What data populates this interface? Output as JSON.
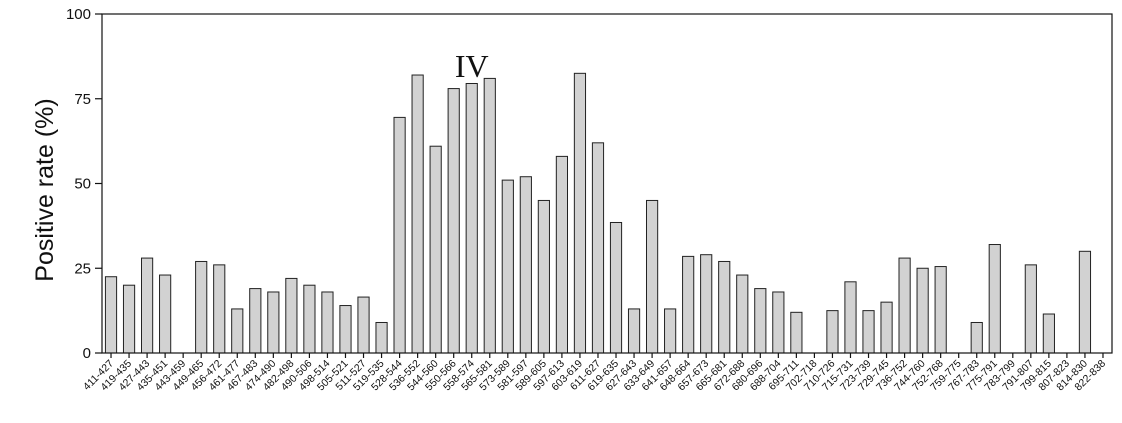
{
  "chart_data": {
    "type": "bar",
    "ylabel": "Positive rate (%)",
    "ylim": [
      0,
      100
    ],
    "yticks": [
      0,
      25,
      50,
      75,
      100
    ],
    "annotations": [
      {
        "text": "IV",
        "near_category": "558-574"
      }
    ],
    "categories": [
      "411-427",
      "419-435",
      "427-443",
      "435-451",
      "443-459",
      "449-465",
      "456-472",
      "461-477",
      "467-483",
      "474-490",
      "482-498",
      "490-506",
      "498-514",
      "505-521",
      "511-527",
      "519-535",
      "528-544",
      "536-552",
      "544-560",
      "550-566",
      "558-574",
      "565-581",
      "573-589",
      "581-597",
      "589-605",
      "597-613",
      "603-619",
      "611-627",
      "619-635",
      "627-643",
      "633-649",
      "641-657",
      "648-664",
      "657-673",
      "665-681",
      "672-688",
      "680-696",
      "688-704",
      "695-711",
      "702-718",
      "710-726",
      "715-731",
      "723-739",
      "729-745",
      "736-752",
      "744-760",
      "752-768",
      "759-775",
      "767-783",
      "775-791",
      "783-799",
      "791-807",
      "799-815",
      "807-823",
      "814-830",
      "822-838"
    ],
    "values": [
      22.5,
      20,
      28,
      23,
      0,
      27,
      26,
      13,
      19,
      18,
      22,
      20,
      18,
      14,
      16.5,
      9,
      69.5,
      82,
      61,
      78,
      79.5,
      81,
      51,
      52,
      45,
      58,
      82.5,
      62,
      38.5,
      13,
      45,
      13,
      28.5,
      29,
      27,
      23,
      19,
      18,
      12,
      0,
      12.5,
      21,
      12.5,
      15,
      28,
      25,
      25.5,
      0,
      9,
      32,
      0,
      26,
      11.5,
      0,
      30,
      0
    ]
  }
}
